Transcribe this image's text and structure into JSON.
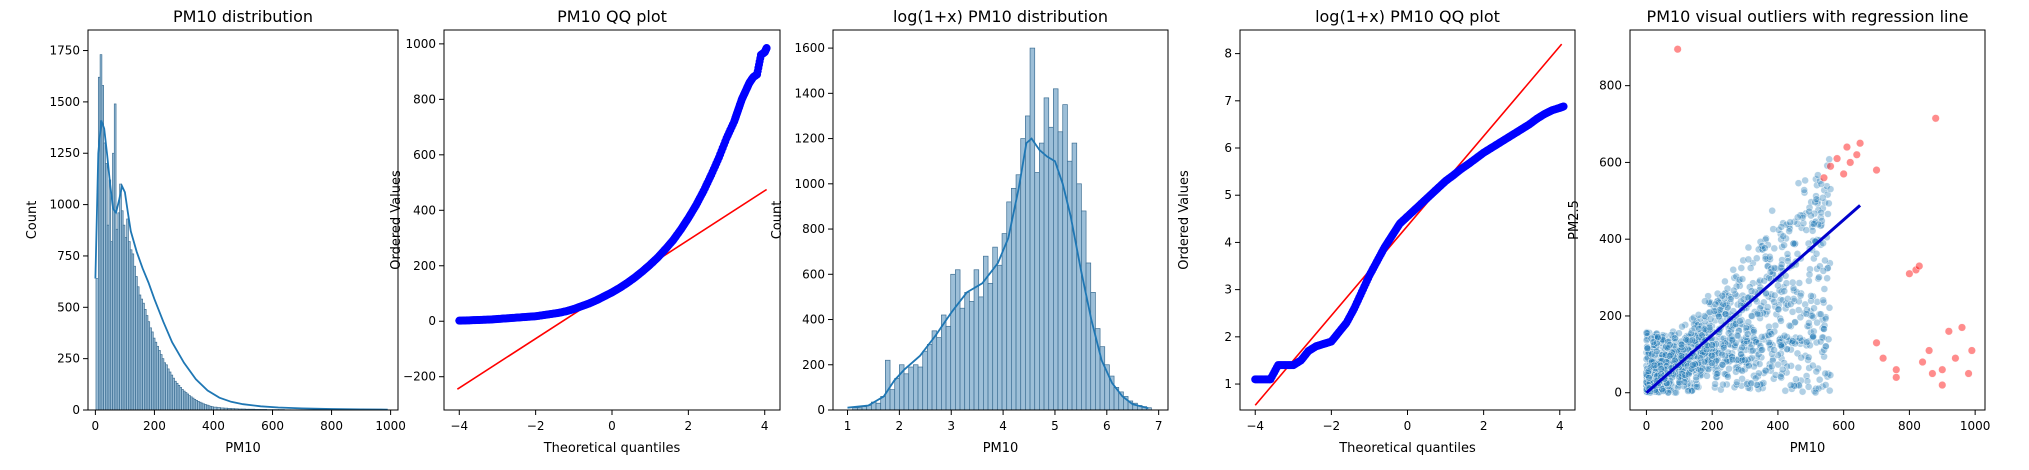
{
  "chart_data": [
    {
      "type": "histogram",
      "title": "PM10 distribution",
      "xlabel": "PM10",
      "ylabel": "Count",
      "xlim": [
        -25,
        1025
      ],
      "ylim": [
        0,
        1850
      ],
      "xticks": [
        "0",
        "200",
        "400",
        "600",
        "800",
        "1000"
      ],
      "yticks": [
        "0",
        "250",
        "500",
        "750",
        "1000",
        "1250",
        "1500",
        "1750"
      ],
      "colors": {
        "bar_fill": "#9dbfd8",
        "bar_edge": "#3d6f94",
        "kde": "#1f77b4"
      },
      "bins_x": [
        2,
        10,
        16,
        22,
        28,
        34,
        40,
        46,
        52,
        58,
        64,
        70,
        76,
        82,
        88,
        94,
        100,
        106,
        112,
        118,
        124,
        130,
        136,
        142,
        148,
        154,
        160,
        166,
        172,
        178,
        184,
        190,
        196,
        202,
        208,
        214,
        220,
        226,
        232,
        238,
        244,
        250,
        256,
        262,
        268,
        274,
        280,
        286,
        292,
        298,
        304,
        310,
        316,
        322,
        328,
        334,
        340,
        346,
        352,
        358,
        364,
        370,
        376,
        382,
        388,
        394,
        400,
        412,
        424,
        436,
        448,
        460,
        472,
        484,
        496,
        508,
        520,
        540,
        560,
        580,
        600,
        620,
        640,
        660,
        680
      ],
      "values": [
        640,
        1620,
        1730,
        1580,
        1300,
        1200,
        900,
        1120,
        820,
        1250,
        1490,
        880,
        960,
        1100,
        970,
        900,
        840,
        930,
        820,
        780,
        760,
        700,
        650,
        600,
        560,
        540,
        520,
        490,
        460,
        430,
        400,
        380,
        350,
        330,
        310,
        290,
        270,
        250,
        230,
        220,
        200,
        185,
        170,
        155,
        140,
        130,
        120,
        110,
        100,
        92,
        85,
        78,
        70,
        64,
        58,
        52,
        47,
        42,
        38,
        34,
        30,
        27,
        24,
        21,
        18,
        16,
        14,
        12,
        10,
        9,
        8,
        7,
        6,
        5,
        5,
        4,
        4,
        3,
        3,
        2,
        2,
        2,
        1,
        1,
        1
      ],
      "kde": {
        "x": [
          0,
          10,
          20,
          30,
          40,
          50,
          60,
          70,
          80,
          90,
          100,
          110,
          120,
          140,
          160,
          180,
          200,
          230,
          260,
          300,
          340,
          380,
          420,
          460,
          500,
          560,
          620,
          700,
          800,
          900,
          990
        ],
        "y": [
          640,
          1250,
          1410,
          1370,
          1240,
          1100,
          980,
          960,
          1020,
          1090,
          1060,
          960,
          870,
          770,
          690,
          620,
          540,
          430,
          330,
          230,
          150,
          95,
          60,
          40,
          28,
          18,
          12,
          8,
          5,
          3,
          2
        ]
      }
    },
    {
      "type": "scatter",
      "title": "PM10 QQ plot",
      "xlabel": "Theoretical quantiles",
      "ylabel": "Ordered Values",
      "xlim": [
        -4.4,
        4.4
      ],
      "ylim": [
        -320,
        1050
      ],
      "xticks": [
        "−4",
        "−2",
        "0",
        "2",
        "4"
      ],
      "yticks": [
        "−200",
        "0",
        "200",
        "400",
        "600",
        "800",
        "1000"
      ],
      "colors": {
        "points": "#0000ff",
        "line": "#ff0000"
      },
      "points": {
        "x": [
          -4.0,
          -3.8,
          -3.6,
          -3.4,
          -3.2,
          -3.0,
          -2.8,
          -2.6,
          -2.4,
          -2.2,
          -2.0,
          -1.8,
          -1.6,
          -1.4,
          -1.2,
          -1.0,
          -0.8,
          -0.6,
          -0.4,
          -0.2,
          0.0,
          0.2,
          0.4,
          0.6,
          0.8,
          1.0,
          1.2,
          1.4,
          1.6,
          1.8,
          2.0,
          2.2,
          2.4,
          2.6,
          2.8,
          3.0,
          3.2,
          3.3,
          3.4,
          3.5,
          3.6,
          3.7,
          3.8,
          3.9,
          4.0,
          4.05
        ],
        "y": [
          2,
          3,
          4,
          5,
          6,
          8,
          10,
          12,
          14,
          16,
          18,
          22,
          26,
          30,
          36,
          44,
          54,
          64,
          76,
          90,
          104,
          120,
          138,
          158,
          180,
          204,
          230,
          260,
          292,
          330,
          372,
          418,
          470,
          528,
          590,
          660,
          720,
          760,
          800,
          830,
          860,
          880,
          890,
          960,
          970,
          985
        ]
      },
      "line": {
        "x": [
          -4.05,
          4.05
        ],
        "y": [
          -245,
          475
        ]
      }
    },
    {
      "type": "histogram",
      "title": "log(1+x) PM10 distribution",
      "xlabel": "PM10",
      "ylabel": "Count",
      "xlim": [
        0.72,
        7.18
      ],
      "ylim": [
        0,
        1680
      ],
      "xticks": [
        "1",
        "2",
        "3",
        "4",
        "5",
        "6",
        "7"
      ],
      "yticks": [
        "0",
        "200",
        "400",
        "600",
        "800",
        "1000",
        "1200",
        "1400",
        "1600"
      ],
      "colors": {
        "bar_fill": "#9dbfd8",
        "bar_edge": "#3d6f94",
        "kde": "#1f77b4"
      },
      "bins_x": [
        1.1,
        1.19,
        1.28,
        1.37,
        1.46,
        1.55,
        1.64,
        1.73,
        1.82,
        1.91,
        2.0,
        2.09,
        2.18,
        2.27,
        2.36,
        2.45,
        2.54,
        2.63,
        2.72,
        2.81,
        2.9,
        2.99,
        3.08,
        3.17,
        3.26,
        3.35,
        3.44,
        3.53,
        3.62,
        3.71,
        3.8,
        3.89,
        3.98,
        4.07,
        4.16,
        4.25,
        4.34,
        4.43,
        4.52,
        4.61,
        4.7,
        4.79,
        4.88,
        4.97,
        5.06,
        5.15,
        5.24,
        5.33,
        5.42,
        5.51,
        5.6,
        5.69,
        5.78,
        5.87,
        5.96,
        6.05,
        6.14,
        6.23,
        6.32,
        6.41,
        6.5,
        6.59,
        6.68,
        6.77
      ],
      "values": [
        10,
        10,
        15,
        20,
        35,
        30,
        60,
        220,
        90,
        140,
        200,
        160,
        190,
        200,
        190,
        260,
        290,
        350,
        320,
        420,
        370,
        600,
        620,
        450,
        520,
        480,
        620,
        500,
        680,
        560,
        720,
        640,
        780,
        920,
        980,
        1040,
        1200,
        1300,
        1600,
        1050,
        1180,
        1380,
        1250,
        1420,
        1230,
        1350,
        1100,
        1180,
        1000,
        880,
        650,
        520,
        360,
        280,
        200,
        150,
        100,
        80,
        60,
        40,
        30,
        20,
        15,
        10
      ],
      "kde": {
        "x": [
          1.0,
          1.4,
          1.7,
          1.9,
          2.1,
          2.4,
          2.7,
          3.0,
          3.3,
          3.6,
          3.9,
          4.1,
          4.3,
          4.45,
          4.55,
          4.7,
          4.85,
          5.0,
          5.15,
          5.3,
          5.5,
          5.7,
          5.9,
          6.1,
          6.3,
          6.5,
          6.8
        ],
        "y": [
          10,
          20,
          60,
          130,
          180,
          240,
          330,
          430,
          520,
          560,
          650,
          760,
          980,
          1180,
          1200,
          1150,
          1120,
          1100,
          1000,
          860,
          620,
          400,
          220,
          120,
          60,
          25,
          8
        ]
      }
    },
    {
      "type": "scatter",
      "title": "log(1+x) PM10 QQ plot",
      "xlabel": "Theoretical quantiles",
      "ylabel": "Ordered Values",
      "xlim": [
        -4.4,
        4.4
      ],
      "ylim": [
        0.45,
        8.5
      ],
      "xticks": [
        "−4",
        "−2",
        "0",
        "2",
        "4"
      ],
      "yticks": [
        "1",
        "2",
        "3",
        "4",
        "5",
        "6",
        "7",
        "8"
      ],
      "colors": {
        "points": "#0000ff",
        "line": "#ff0000"
      },
      "points": {
        "x": [
          -4.0,
          -3.8,
          -3.6,
          -3.4,
          -3.2,
          -3.0,
          -2.8,
          -2.6,
          -2.4,
          -2.2,
          -2.0,
          -1.8,
          -1.6,
          -1.4,
          -1.2,
          -1.0,
          -0.8,
          -0.6,
          -0.4,
          -0.2,
          0.0,
          0.2,
          0.4,
          0.6,
          0.8,
          1.0,
          1.2,
          1.4,
          1.6,
          1.8,
          2.0,
          2.2,
          2.4,
          2.6,
          2.8,
          3.0,
          3.2,
          3.4,
          3.6,
          3.8,
          4.0,
          4.1
        ],
        "y": [
          1.1,
          1.1,
          1.1,
          1.4,
          1.4,
          1.4,
          1.5,
          1.7,
          1.8,
          1.85,
          1.9,
          2.1,
          2.3,
          2.6,
          2.95,
          3.3,
          3.6,
          3.9,
          4.15,
          4.4,
          4.55,
          4.7,
          4.85,
          5.0,
          5.15,
          5.3,
          5.42,
          5.55,
          5.66,
          5.78,
          5.9,
          6.0,
          6.1,
          6.2,
          6.3,
          6.4,
          6.5,
          6.62,
          6.72,
          6.8,
          6.85,
          6.88
        ]
      },
      "line": {
        "x": [
          -4.0,
          4.05
        ],
        "y": [
          0.55,
          8.2
        ]
      }
    },
    {
      "type": "scatter",
      "title": "PM10 visual outliers with regression line",
      "xlabel": "PM10",
      "ylabel": "PM2.5",
      "xlim": [
        -50,
        1030
      ],
      "ylim": [
        -45,
        945
      ],
      "xticks": [
        "0",
        "200",
        "400",
        "600",
        "800",
        "1000"
      ],
      "yticks": [
        "0",
        "200",
        "400",
        "600",
        "800"
      ],
      "colors": {
        "inliers": "#1f77b4",
        "outliers": "#ff0000",
        "regression": "#0000cc"
      },
      "outliers": {
        "x": [
          95,
          880,
          540,
          560,
          580,
          600,
          610,
          620,
          640,
          650,
          700,
          720,
          760,
          800,
          820,
          830,
          840,
          860,
          870,
          900,
          920,
          940,
          960,
          980,
          990,
          700,
          760,
          900
        ],
        "y": [
          895,
          715,
          560,
          590,
          610,
          570,
          640,
          600,
          620,
          650,
          580,
          90,
          60,
          310,
          320,
          330,
          80,
          110,
          50,
          60,
          160,
          90,
          170,
          50,
          110,
          130,
          40,
          20
        ]
      },
      "regression": {
        "x": [
          0,
          650
        ],
        "y": [
          0,
          488
        ]
      }
    }
  ]
}
